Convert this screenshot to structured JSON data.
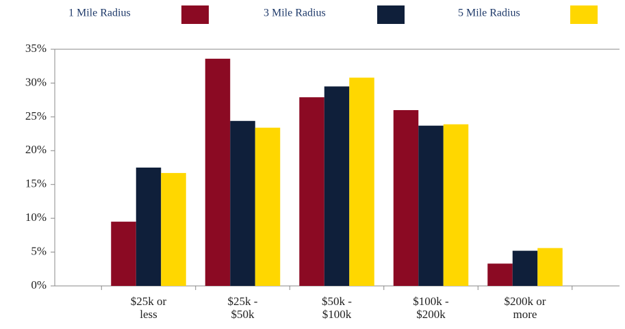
{
  "chart_data": {
    "type": "bar",
    "categories": [
      "$25k or\nless",
      "$25k -\n$50k",
      "$50k -\n$100k",
      "$100k -\n$200k",
      "$200k or\nmore"
    ],
    "series": [
      {
        "name": "1 Mile Radius",
        "color": "#8b0a23",
        "values": [
          9.5,
          33.6,
          27.9,
          26.0,
          3.3
        ]
      },
      {
        "name": "3 Mile Radius",
        "color": "#0f1f3a",
        "values": [
          17.5,
          24.4,
          29.5,
          23.7,
          5.2
        ]
      },
      {
        "name": "5 Mile Radius",
        "color": "#ffd700",
        "values": [
          16.7,
          23.4,
          30.8,
          23.9,
          5.6
        ]
      }
    ],
    "ylim": [
      0,
      35
    ],
    "yticks": [
      {
        "value": 0,
        "label": "0%"
      },
      {
        "value": 5,
        "label": "5%"
      },
      {
        "value": 10,
        "label": "10%"
      },
      {
        "value": 15,
        "label": "15%"
      },
      {
        "value": 20,
        "label": "20%"
      },
      {
        "value": 25,
        "label": "25%"
      },
      {
        "value": 30,
        "label": "30%"
      },
      {
        "value": 35,
        "label": "35%"
      }
    ],
    "grid": false
  }
}
